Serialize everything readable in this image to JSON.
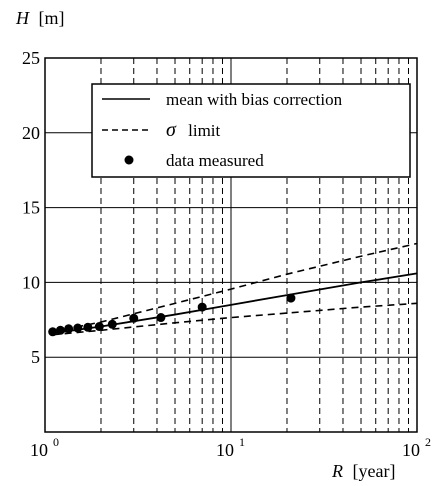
{
  "chart_data": {
    "type": "line",
    "xscale": "log",
    "xlim": [
      1,
      100
    ],
    "ylim": [
      0,
      25
    ],
    "xlabel": {
      "symbol": "R",
      "unit": "[year]"
    },
    "ylabel": {
      "symbol": "H",
      "unit": "[m]"
    },
    "x_ticks": [
      {
        "base": "10",
        "exp": "0",
        "value": 1
      },
      {
        "base": "10",
        "exp": "1",
        "value": 10
      },
      {
        "base": "10",
        "exp": "2",
        "value": 100
      }
    ],
    "y_ticks": [
      5,
      10,
      15,
      20,
      25
    ],
    "y_tick_labels": [
      "5",
      "10",
      "15",
      "20",
      "25"
    ],
    "grid": {
      "major": "solid",
      "minor_x": "dashed"
    },
    "legend": {
      "position": "top-right",
      "entries": [
        {
          "label": "mean with bias correction",
          "style": "solid"
        },
        {
          "label": "limit",
          "symbol": "σ",
          "style": "dashed"
        },
        {
          "label": "data measured",
          "style": "marker"
        }
      ]
    },
    "series": [
      {
        "label": "mean with bias correction",
        "style": "solid",
        "x": [
          1.1,
          2,
          5,
          10,
          20,
          50,
          100
        ],
        "y": [
          6.6,
          7.05,
          7.85,
          8.5,
          9.15,
          10.0,
          10.6
        ]
      },
      {
        "label": "limit",
        "style": "dashed",
        "x": [
          1.1,
          2,
          5,
          10,
          20,
          50,
          100
        ],
        "y": [
          6.7,
          7.35,
          8.6,
          9.55,
          10.55,
          11.75,
          12.6
        ]
      },
      {
        "label": "limit",
        "style": "dashed",
        "x": [
          1.1,
          2,
          5,
          10,
          20,
          50,
          100
        ],
        "y": [
          6.5,
          6.8,
          7.3,
          7.65,
          7.95,
          8.35,
          8.6
        ]
      },
      {
        "label": "data measured",
        "style": "marker",
        "x": [
          1.1,
          1.21,
          1.34,
          1.5,
          1.7,
          1.96,
          2.3,
          3.0,
          4.2,
          7.0,
          21.0
        ],
        "y": [
          6.7,
          6.8,
          6.9,
          6.95,
          7.0,
          7.05,
          7.2,
          7.6,
          7.65,
          8.35,
          8.95
        ]
      }
    ]
  }
}
